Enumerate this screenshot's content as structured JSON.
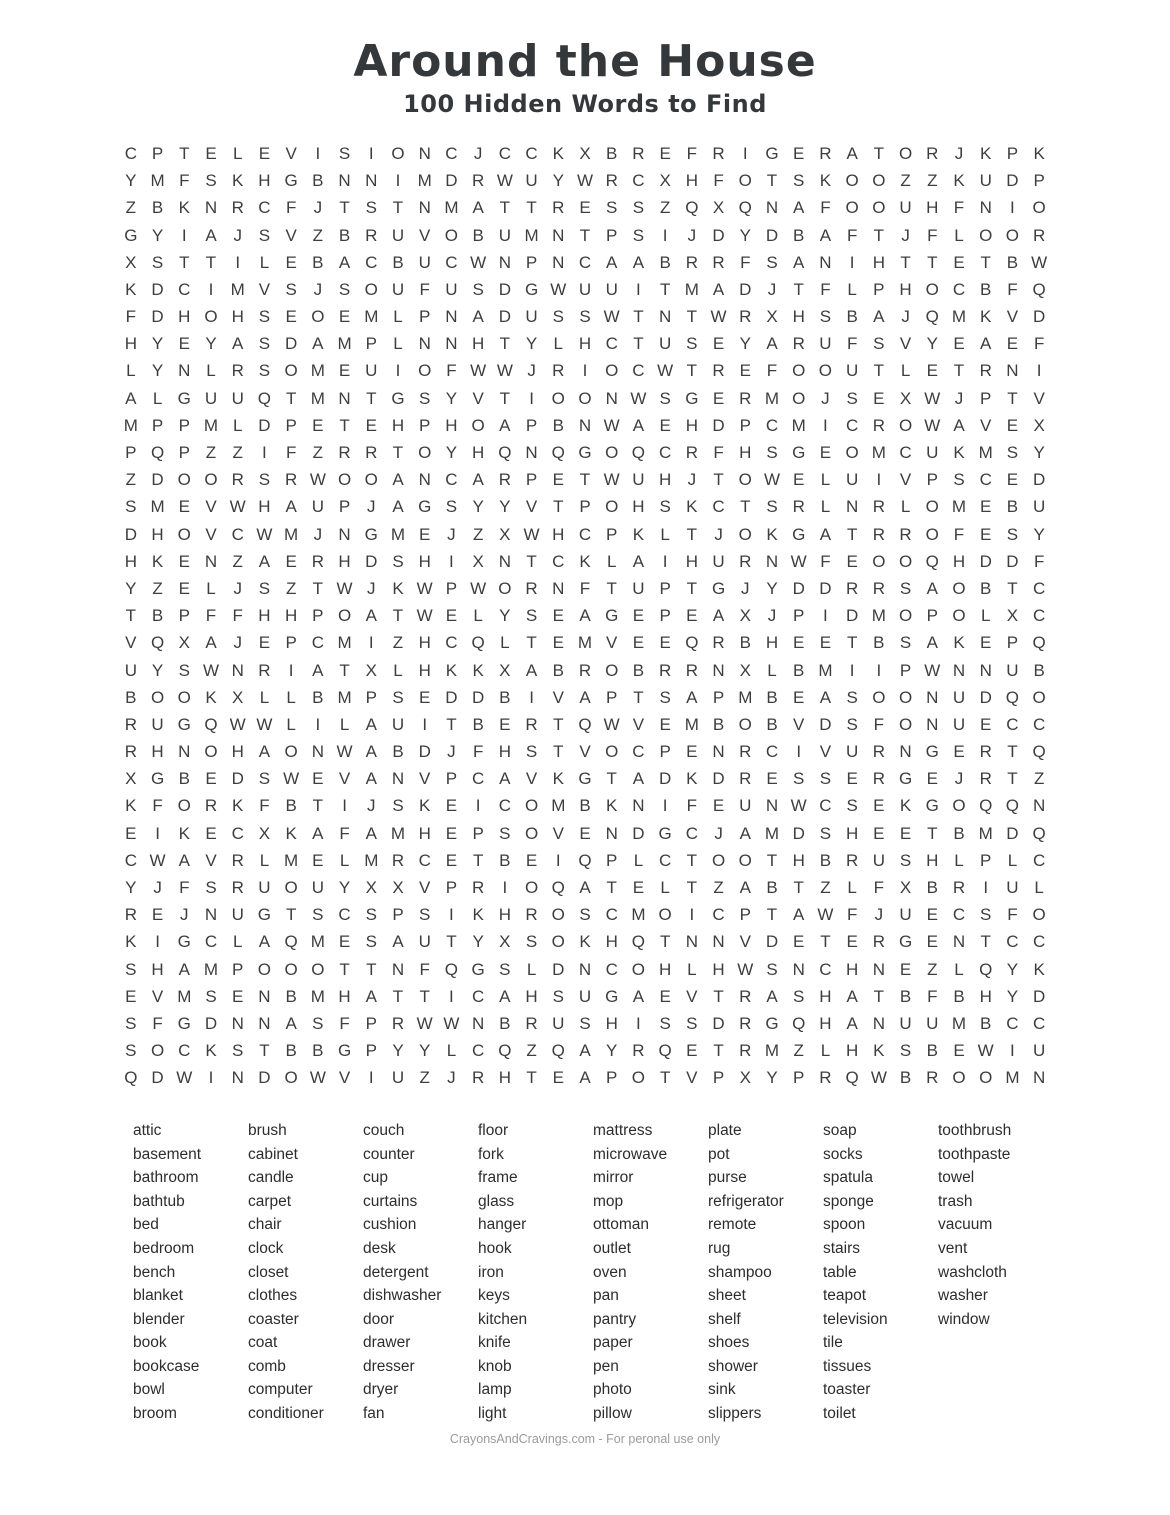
{
  "page": {
    "title": "Around the House",
    "subtitle": "100 Hidden Words to Find",
    "footer": "CrayonsAndCravings.com - For peronal use only"
  },
  "colors": {
    "title_color": "#35383b",
    "grid_letter_color": "#3e3e3e",
    "word_text_color": "#2d2d2d",
    "footer_text_color": "#9b9b9b",
    "page_bg": "#ffffff"
  },
  "grid": {
    "rows": 35,
    "cols": 35,
    "letters": [
      "CPTELEVISIONCJCCKXBREFRIGERATORJKPK",
      "YMFSKHGBNNIMDRWUYWRCXHFOTSKOOZZKUDP",
      "ZBKNRCFJTSTNMATTRESSZQXQNAFOOUHFNIO",
      "GYIAJSVZBRUVOBUMNTPSIJDYDBAFTJFLOOR",
      "XSTTILEBACBUCWNPNCAABRRFSANIHTTETBW",
      "KDCIMVSJSOUFUSDGWUUITMADJTFLPHOCBFQ",
      "FDHOHSEOEMLPNADUSSWTNTWRXHSBAJQMKVD",
      "HYEYASDAMPLNNHTYLHCTUSEYARUFSVYEAEF",
      "LYNLRSOMEUIOFWWJRIOCWTREFOOUTLETRNI",
      "ALGUUQTMNTGSYVTIOONWSGERMOJSEXWJPTV",
      "MPPMLDPETEHPHOAPBNWAEHDPCMICROWAVEX",
      "PQPZZIFZRRTOYHQNQGOQCRFHSGEOMCUKMSY",
      "ZDOORSRWOOANCARPETWUHJTOWELUIVPSCED",
      "SMEVWHAUPJAGSYYVTPOHSKCTSRLNRLOMEBU",
      "DHOVCWMJNGMEJZXWHCPKLTJOKGATRROFESY",
      "HKENZAERHDSHIXNTCKLAIHURNWFEOOQHDDF",
      "YZELJSZTWJKWPWORNFTUPTGJYDDRRSAOBTC",
      "TBPFFHHPOATWELYSEAGEPEAXJPIDMOPOLXC",
      "VQXAJEPCMIZHCQLTEMVEEQRBHEETBSAKEPQ",
      "UYSWNRIATXLHKKXABROBRRNXLBMIIPWNNUB",
      "BOOKXLLBMPSEDDBIVAPTSAPMBEASOONUDQO",
      "RUGQWWLILAUITBERTQWVEMBOBVDSFONUECC",
      "RHNOHAONWABDJFHSTVOCPENRCIVURNGERTQ",
      "XGBEDSWEVANVPCAVKGTADKDRESSERGEJRTZ",
      "KFORKFBTIJSKEICOMBKNIFEUNWCSEKGOQQN",
      "EIKECXKAFAMHEPSOVENDGCJAMDSHEETBMDQ",
      "CWAVRLMELMRCETBEIQPLCTOOTHBRUSHLPLC",
      "YJFSRUOUYXXVPRIOQATELTZABTZLFXBRIUL",
      "REJNUGTSCSPSIKHROSCMOICPTAWFJUECSFO",
      "KIGCLAQMESAUTYXSOKHQTNNVDETERGENTCC",
      "SHAMPOOOTTNFQGSLDNCOHLHWSNCHNEZLQYK",
      "EVMSENBMHATTICAHSUGAEVTRASHATBFBHYD",
      "SFGDNNASFPRWWNBRUSHISSDRGQHANUUMBCC",
      "SOCKSTBBGPYYLCQZQAYRQETRMZLHKSBEWIU",
      "QDWINDOWVIUZJRHTEAPOTVPXYPRQWBROOMN"
    ]
  },
  "word_list": {
    "columns": [
      [
        "attic",
        "basement",
        "bathroom",
        "bathtub",
        "bed",
        "bedroom",
        "bench",
        "blanket",
        "blender",
        "book",
        "bookcase",
        "bowl",
        "broom"
      ],
      [
        "brush",
        "cabinet",
        "candle",
        "carpet",
        "chair",
        "clock",
        "closet",
        "clothes",
        "coaster",
        "coat",
        "comb",
        "computer",
        "conditioner"
      ],
      [
        "couch",
        "counter",
        "cup",
        "curtains",
        "cushion",
        "desk",
        "detergent",
        "dishwasher",
        "door",
        "drawer",
        "dresser",
        "dryer",
        "fan"
      ],
      [
        "floor",
        "fork",
        "frame",
        "glass",
        "hanger",
        "hook",
        "iron",
        "keys",
        "kitchen",
        "knife",
        "knob",
        "lamp",
        "light"
      ],
      [
        "mattress",
        "microwave",
        "mirror",
        "mop",
        "ottoman",
        "outlet",
        "oven",
        "pan",
        "pantry",
        "paper",
        "pen",
        "photo",
        "pillow"
      ],
      [
        "plate",
        "pot",
        "purse",
        "refrigerator",
        "remote",
        "rug",
        "shampoo",
        "sheet",
        "shelf",
        "shoes",
        "shower",
        "sink",
        "slippers"
      ],
      [
        "soap",
        "socks",
        "spatula",
        "sponge",
        "spoon",
        "stairs",
        "table",
        "teapot",
        "television",
        "tile",
        "tissues",
        "toaster",
        "toilet"
      ],
      [
        "toothbrush",
        "toothpaste",
        "towel",
        "trash",
        "vacuum",
        "vent",
        "washcloth",
        "washer",
        "window"
      ]
    ]
  }
}
